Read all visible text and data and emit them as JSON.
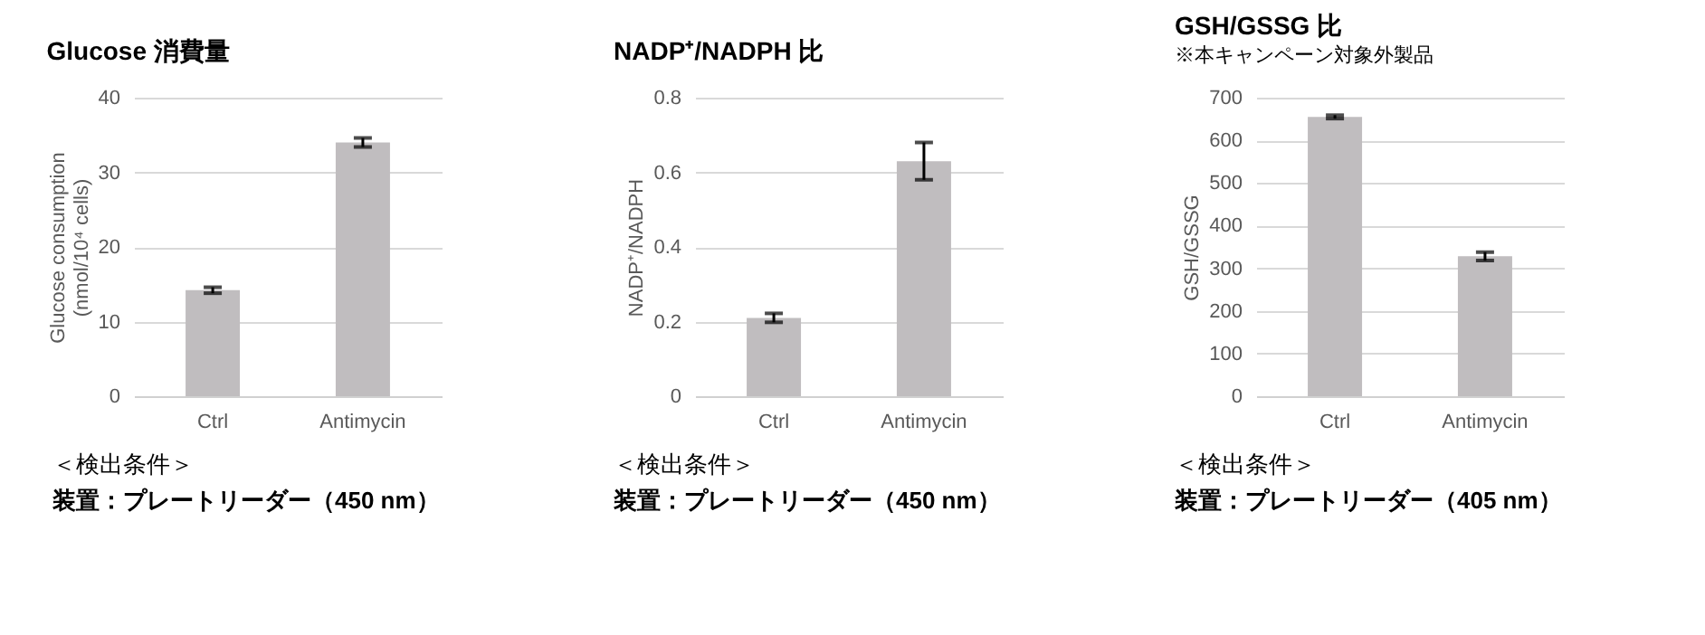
{
  "chart_data": [
    {
      "type": "bar",
      "title": "Glucose 消費量",
      "ylabel": "Glucose consumption (nmol/10⁴ cells)",
      "categories": [
        "Ctrl",
        "Antimycin"
      ],
      "values": [
        14.2,
        34.0
      ],
      "errors": [
        0.4,
        0.6
      ],
      "color": "#c0bdbf",
      "ylim": [
        0,
        40
      ],
      "yticks": [
        0,
        10,
        20,
        30,
        40
      ],
      "grid": "y",
      "annotations": [
        "＜検出条件＞",
        "装置：プレートリーダー（450 nm）"
      ]
    },
    {
      "type": "bar",
      "title": "NADP⁺/NADPH 比",
      "ylabel": "NADP⁺/NADPH",
      "categories": [
        "Ctrl",
        "Antimycin"
      ],
      "values": [
        0.21,
        0.63
      ],
      "errors": [
        0.012,
        0.05
      ],
      "color": "#c0bdbf",
      "ylim": [
        0,
        0.8
      ],
      "yticks": [
        0,
        0.2,
        0.4,
        0.6,
        0.8
      ],
      "grid": "y",
      "annotations": [
        "＜検出条件＞",
        "装置：プレートリーダー（450 nm）"
      ]
    },
    {
      "type": "bar",
      "title": "GSH/GSSG 比",
      "subtitle": "※本キャンペーン対象外製品",
      "ylabel": "GSH/GSSG",
      "categories": [
        "Ctrl",
        "Antimycin"
      ],
      "values": [
        655,
        328
      ],
      "errors": [
        4,
        10
      ],
      "color": "#c0bdbf",
      "ylim": [
        0,
        700
      ],
      "yticks": [
        0,
        100,
        200,
        300,
        400,
        500,
        600,
        700
      ],
      "grid": "y",
      "annotations": [
        "＜検出条件＞",
        "装置：プレートリーダー（405 nm）"
      ]
    }
  ]
}
